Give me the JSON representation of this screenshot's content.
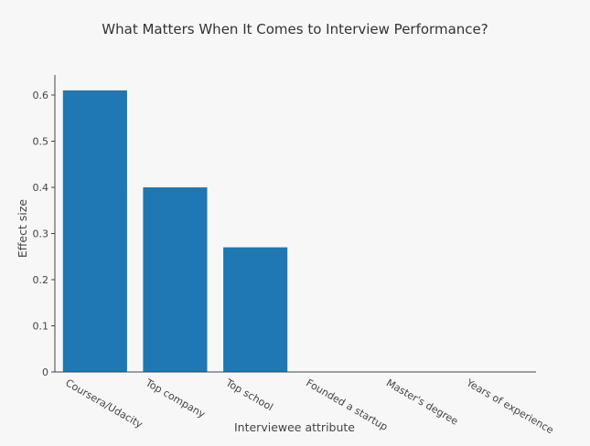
{
  "chart_data": {
    "type": "bar",
    "title": "What Matters When It Comes to Interview Performance?",
    "xlabel": "Interviewee attribute",
    "ylabel": "Effect size",
    "categories": [
      "Coursera/Udacity",
      "Top company",
      "Top school",
      "Founded a startup",
      "Master's degree",
      "Years of experience"
    ],
    "values": [
      0.61,
      0.4,
      0.27,
      0,
      0,
      0
    ],
    "ylim": [
      0,
      0.65
    ],
    "yticks": [
      "0",
      "0.1",
      "0.2",
      "0.3",
      "0.4",
      "0.5",
      "0.6"
    ],
    "grid": false,
    "bar_color": "#1f77b4",
    "axis_color": "#444444"
  }
}
